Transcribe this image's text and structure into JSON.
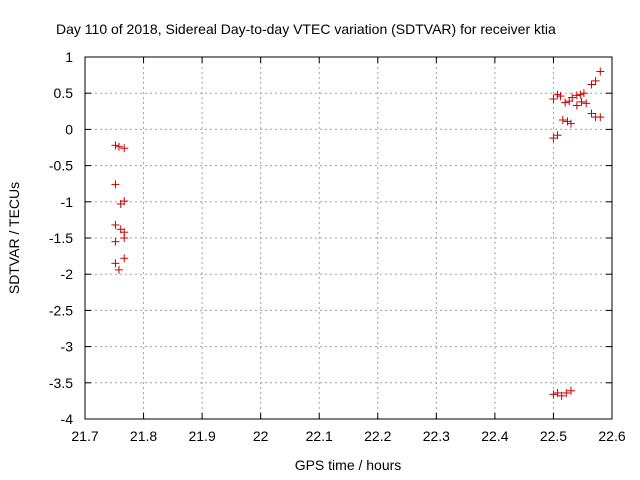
{
  "chart_data": {
    "type": "scatter",
    "title": "Day 110 of 2018, Sidereal Day-to-day VTEC variation (SDTVAR) for receiver ktia",
    "xlabel": "GPS time / hours",
    "ylabel": "SDTVAR / TECUs",
    "xlim": [
      21.7,
      22.6
    ],
    "ylim": [
      -4,
      1
    ],
    "xticks": [
      "21.7",
      "21.8",
      "21.9",
      "22",
      "22.1",
      "22.2",
      "22.3",
      "22.4",
      "22.5",
      "22.6"
    ],
    "yticks": [
      "1",
      "0.5",
      "0",
      "-0.5",
      "-1",
      "-1.5",
      "-2",
      "-2.5",
      "-3",
      "-3.5",
      "-4"
    ],
    "grid": true,
    "marker": "+",
    "color": "#cc0000",
    "series": [
      {
        "name": "SDTVAR",
        "points": [
          {
            "x": 21.752,
            "y": -0.22
          },
          {
            "x": 21.758,
            "y": -0.24
          },
          {
            "x": 21.767,
            "y": -0.26
          },
          {
            "x": 21.752,
            "y": -0.76
          },
          {
            "x": 21.761,
            "y": -1.03
          },
          {
            "x": 21.767,
            "y": -0.99
          },
          {
            "x": 21.752,
            "y": -1.32
          },
          {
            "x": 21.761,
            "y": -1.38
          },
          {
            "x": 21.767,
            "y": -1.42
          },
          {
            "x": 21.767,
            "y": -1.5
          },
          {
            "x": 21.752,
            "y": -1.55
          },
          {
            "x": 21.767,
            "y": -1.78
          },
          {
            "x": 21.752,
            "y": -1.85
          },
          {
            "x": 21.758,
            "y": -1.94
          },
          {
            "x": 22.5,
            "y": 0.42
          },
          {
            "x": 22.507,
            "y": 0.48
          },
          {
            "x": 22.512,
            "y": 0.46
          },
          {
            "x": 22.52,
            "y": 0.37
          },
          {
            "x": 22.527,
            "y": 0.39
          },
          {
            "x": 22.532,
            "y": 0.44
          },
          {
            "x": 22.54,
            "y": 0.47
          },
          {
            "x": 22.546,
            "y": 0.48
          },
          {
            "x": 22.552,
            "y": 0.5
          },
          {
            "x": 22.54,
            "y": 0.33
          },
          {
            "x": 22.548,
            "y": 0.38
          },
          {
            "x": 22.556,
            "y": 0.36
          },
          {
            "x": 22.565,
            "y": 0.62
          },
          {
            "x": 22.572,
            "y": 0.67
          },
          {
            "x": 22.58,
            "y": 0.8
          },
          {
            "x": 22.565,
            "y": 0.22
          },
          {
            "x": 22.572,
            "y": 0.17
          },
          {
            "x": 22.58,
            "y": 0.17
          },
          {
            "x": 22.516,
            "y": 0.13
          },
          {
            "x": 22.524,
            "y": 0.11
          },
          {
            "x": 22.53,
            "y": 0.08
          },
          {
            "x": 22.5,
            "y": -0.12
          },
          {
            "x": 22.507,
            "y": -0.08
          },
          {
            "x": 22.5,
            "y": -3.66
          },
          {
            "x": 22.507,
            "y": -3.64
          },
          {
            "x": 22.514,
            "y": -3.68
          },
          {
            "x": 22.522,
            "y": -3.64
          },
          {
            "x": 22.53,
            "y": -3.61
          }
        ]
      }
    ]
  }
}
